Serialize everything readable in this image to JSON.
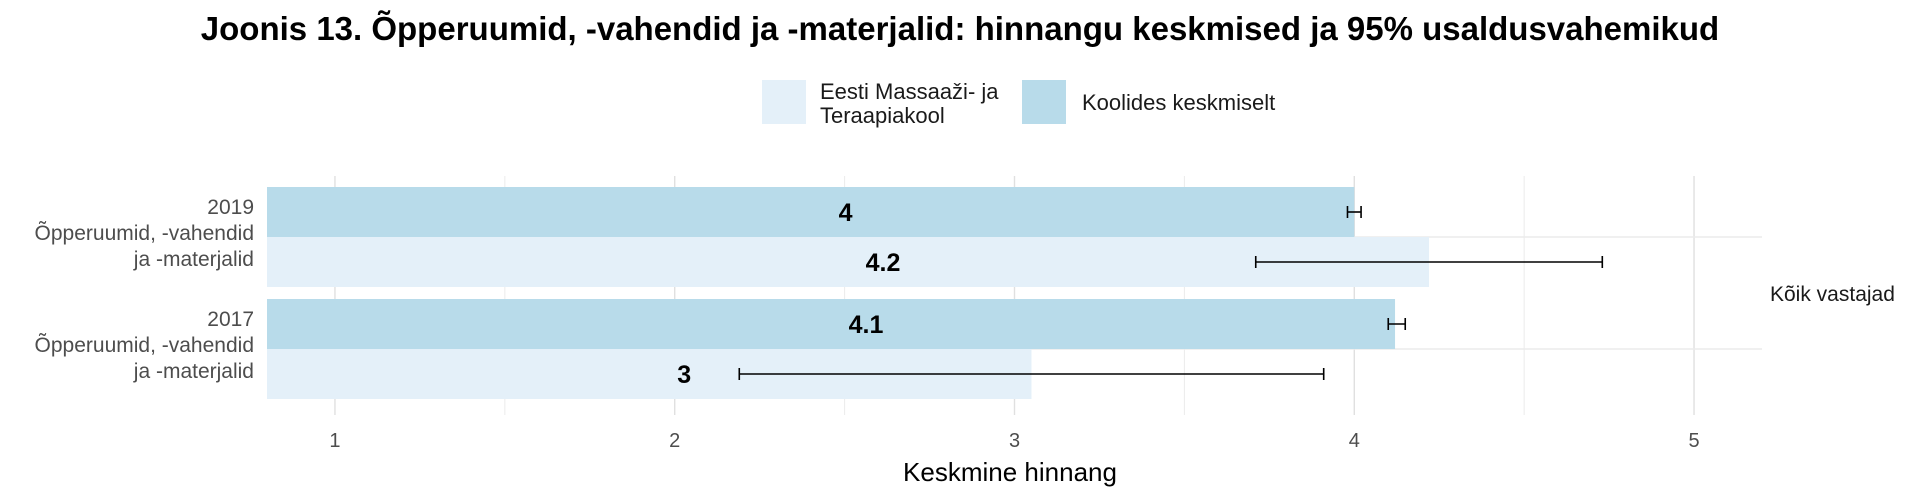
{
  "chart_data": {
    "type": "bar",
    "orientation": "horizontal",
    "title": "Joonis 13. Õpperuumid, -vahendid ja -materjalid: hinnangu keskmised ja 95% usaldusvahemikud",
    "xlabel": "Keskmine hinnang",
    "ylabel": "",
    "xlim": [
      0.8,
      5.2
    ],
    "x_ticks": [
      "1",
      "2",
      "3",
      "4",
      "5"
    ],
    "grid": true,
    "legend_position": "top",
    "facet_label": "Kõik vastajad",
    "categories": [
      [
        "2019",
        "Õpperuumid, -vahendid",
        "ja -materjalid"
      ],
      [
        "2017",
        "Õpperuumid, -vahendid",
        "ja -materjalid"
      ]
    ],
    "series": [
      {
        "name": "Koolides keskmiselt",
        "color": "#b8dbea",
        "values": [
          4.0,
          4.12
        ],
        "labels": [
          "4",
          "4.1"
        ],
        "ci_low": [
          3.98,
          4.1
        ],
        "ci_high": [
          4.02,
          4.15
        ]
      },
      {
        "name": "Eesti Massaaži- ja Teraapiakool",
        "legend_lines": [
          "Eesti Massaaži- ja",
          "Teraapiakool"
        ],
        "color": "#e4f0f9",
        "values": [
          4.22,
          3.05
        ],
        "labels": [
          "4.2",
          "3"
        ],
        "ci_low": [
          3.71,
          2.19
        ],
        "ci_high": [
          4.73,
          3.91
        ]
      }
    ]
  }
}
